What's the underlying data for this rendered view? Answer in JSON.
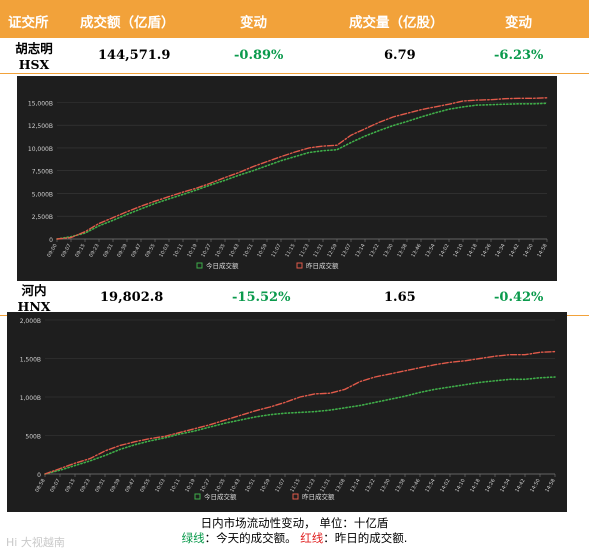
{
  "header": {
    "col_exchange": "证交所",
    "col_value": "成交额（亿盾）",
    "col_change1": "变动",
    "col_volume": "成交量（亿股）",
    "col_change2": "变动"
  },
  "rows": [
    {
      "name_line1": "胡志明",
      "name_line2": "HSX",
      "value": "144,571.9",
      "change1": "-0.89%",
      "volume": "6.79",
      "change2": "-6.23%"
    },
    {
      "name_line1": "河内",
      "name_line2": "HNX",
      "value": "19,802.8",
      "change1": "-15.52%",
      "volume": "1.65",
      "change2": "-0.42%"
    }
  ],
  "colors": {
    "header_bg": "#f2a23a",
    "negative": "#0a9a4c",
    "today_line": "#3fae49",
    "yesterday_line": "#e05a4a",
    "chart_bg": "#1e1e1e"
  },
  "footer": {
    "line1": "日内市场流动性变动，  单位：十亿盾",
    "green_label": "绿线",
    "green_text": "：今天的成交额。 ",
    "red_label": "红线",
    "red_text": "：昨日的成交额."
  },
  "watermark": "Hi 大视越南",
  "chart_data": [
    {
      "type": "line",
      "name": "HSX",
      "x": [
        "09:00",
        "09:07",
        "09:15",
        "09:23",
        "09:31",
        "09:39",
        "09:47",
        "09:55",
        "10:03",
        "10:11",
        "10:19",
        "10:27",
        "10:35",
        "10:43",
        "10:51",
        "10:59",
        "11:07",
        "11:15",
        "11:23",
        "11:31",
        "12:59",
        "13:07",
        "13:14",
        "13:22",
        "13:30",
        "13:38",
        "13:46",
        "13:54",
        "14:02",
        "14:10",
        "14:18",
        "14:26",
        "14:34",
        "14:42",
        "14:50",
        "14:58"
      ],
      "y_ticks": [
        "0",
        "2,500B",
        "5,000B",
        "7,500B",
        "10,000B",
        "12,500B",
        "15,000B"
      ],
      "ylim": [
        0,
        16250
      ],
      "series": [
        {
          "name": "今日成交额",
          "values": [
            0,
            250,
            650,
            1450,
            2050,
            2700,
            3300,
            3900,
            4400,
            4900,
            5400,
            5950,
            6450,
            7000,
            7500,
            8050,
            8600,
            9050,
            9500,
            9700,
            9800,
            10600,
            11300,
            11900,
            12450,
            12900,
            13400,
            13850,
            14250,
            14500,
            14700,
            14750,
            14800,
            14850,
            14850,
            14900
          ]
        },
        {
          "name": "昨日成交额",
          "values": [
            0,
            150,
            800,
            1700,
            2350,
            3000,
            3600,
            4150,
            4650,
            5150,
            5600,
            6150,
            6750,
            7300,
            7950,
            8500,
            9050,
            9550,
            10000,
            10200,
            10300,
            11400,
            12100,
            12800,
            13400,
            13800,
            14200,
            14500,
            14800,
            15150,
            15250,
            15300,
            15400,
            15450,
            15450,
            15500
          ]
        }
      ]
    },
    {
      "type": "line",
      "name": "HNX",
      "x": [
        "08:58",
        "09:07",
        "09:15",
        "09:23",
        "09:31",
        "09:39",
        "09:47",
        "09:55",
        "10:03",
        "10:11",
        "10:19",
        "10:27",
        "10:35",
        "10:43",
        "10:51",
        "10:59",
        "11:07",
        "11:15",
        "11:23",
        "11:31",
        "13:08",
        "13:14",
        "13:22",
        "13:30",
        "13:38",
        "13:46",
        "13:54",
        "14:02",
        "14:10",
        "14:18",
        "14:26",
        "14:34",
        "14:42",
        "14:50",
        "14:58"
      ],
      "y_ticks": [
        "0",
        "500B",
        "1,000B",
        "1,500B",
        "2,000B"
      ],
      "ylim": [
        0,
        2000
      ],
      "series": [
        {
          "name": "今日成交额",
          "values": [
            0,
            50,
            110,
            170,
            240,
            320,
            380,
            430,
            470,
            520,
            560,
            610,
            660,
            700,
            740,
            770,
            790,
            800,
            810,
            830,
            860,
            890,
            930,
            970,
            1010,
            1060,
            1100,
            1130,
            1160,
            1190,
            1210,
            1230,
            1230,
            1250,
            1260
          ]
        },
        {
          "name": "昨日成交额",
          "values": [
            0,
            70,
            140,
            200,
            300,
            370,
            420,
            460,
            490,
            540,
            590,
            640,
            700,
            760,
            820,
            870,
            930,
            1000,
            1040,
            1050,
            1100,
            1200,
            1260,
            1300,
            1340,
            1380,
            1420,
            1450,
            1470,
            1500,
            1530,
            1550,
            1550,
            1580,
            1590
          ]
        }
      ]
    }
  ]
}
